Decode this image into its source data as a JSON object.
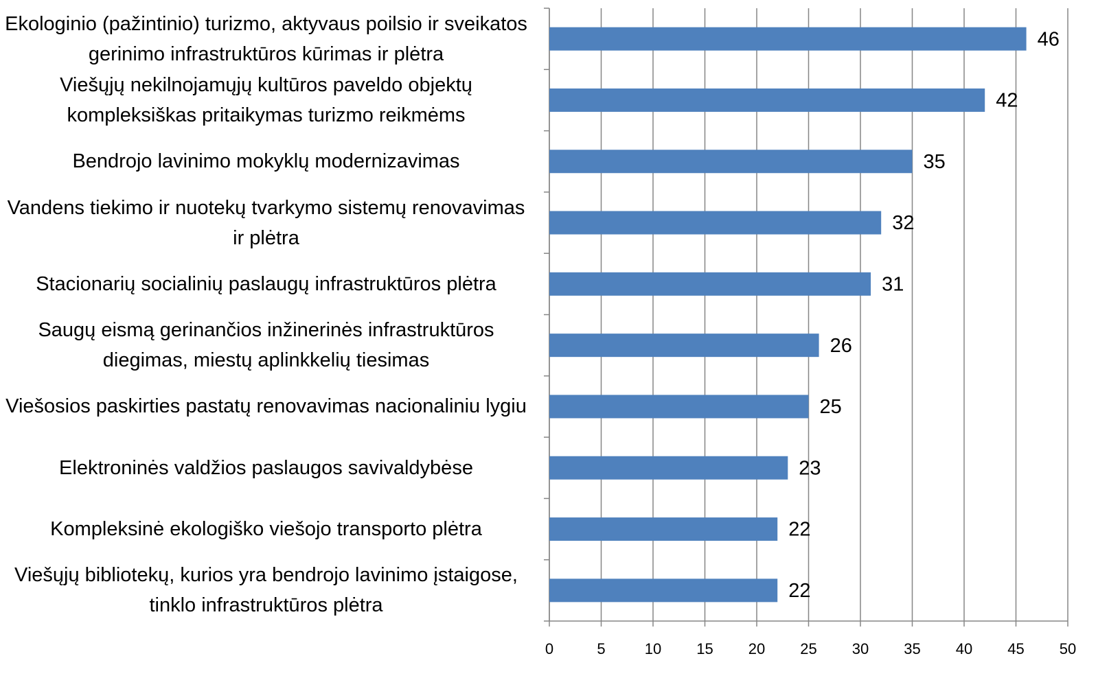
{
  "chart_data": {
    "type": "bar",
    "orientation": "horizontal",
    "categories": [
      "Ekologinio (pažintinio) turizmo, aktyvaus poilsio ir sveikatos gerinimo infrastruktūros kūrimas ir plėtra",
      "Viešųjų nekilnojamųjų kultūros paveldo objektų kompleksiškas pritaikymas turizmo reikmėms",
      "Bendrojo lavinimo mokyklų modernizavimas",
      "Vandens tiekimo ir nuotekų tvarkymo sistemų renovavimas ir plėtra",
      "Stacionarių socialinių paslaugų infrastruktūros plėtra",
      "Saugų eismą gerinančios inžinerinės infrastruktūros diegimas, miestų aplinkkelių tiesimas",
      "Viešosios paskirties pastatų renovavimas nacionaliniu lygiu",
      "Elektroninės valdžios paslaugos savivaldybėse",
      "Kompleksinė ekologiško viešojo transporto plėtra",
      "Viešųjų bibliotekų, kurios yra bendrojo lavinimo įstaigose, tinklo infrastruktūros plėtra"
    ],
    "values": [
      46,
      42,
      35,
      32,
      31,
      26,
      25,
      23,
      22,
      22
    ],
    "color": "#4f81bd",
    "xlim": [
      0,
      50
    ],
    "xticks": [
      0,
      5,
      10,
      15,
      20,
      25,
      30,
      35,
      40,
      45,
      50
    ],
    "grid": true
  }
}
